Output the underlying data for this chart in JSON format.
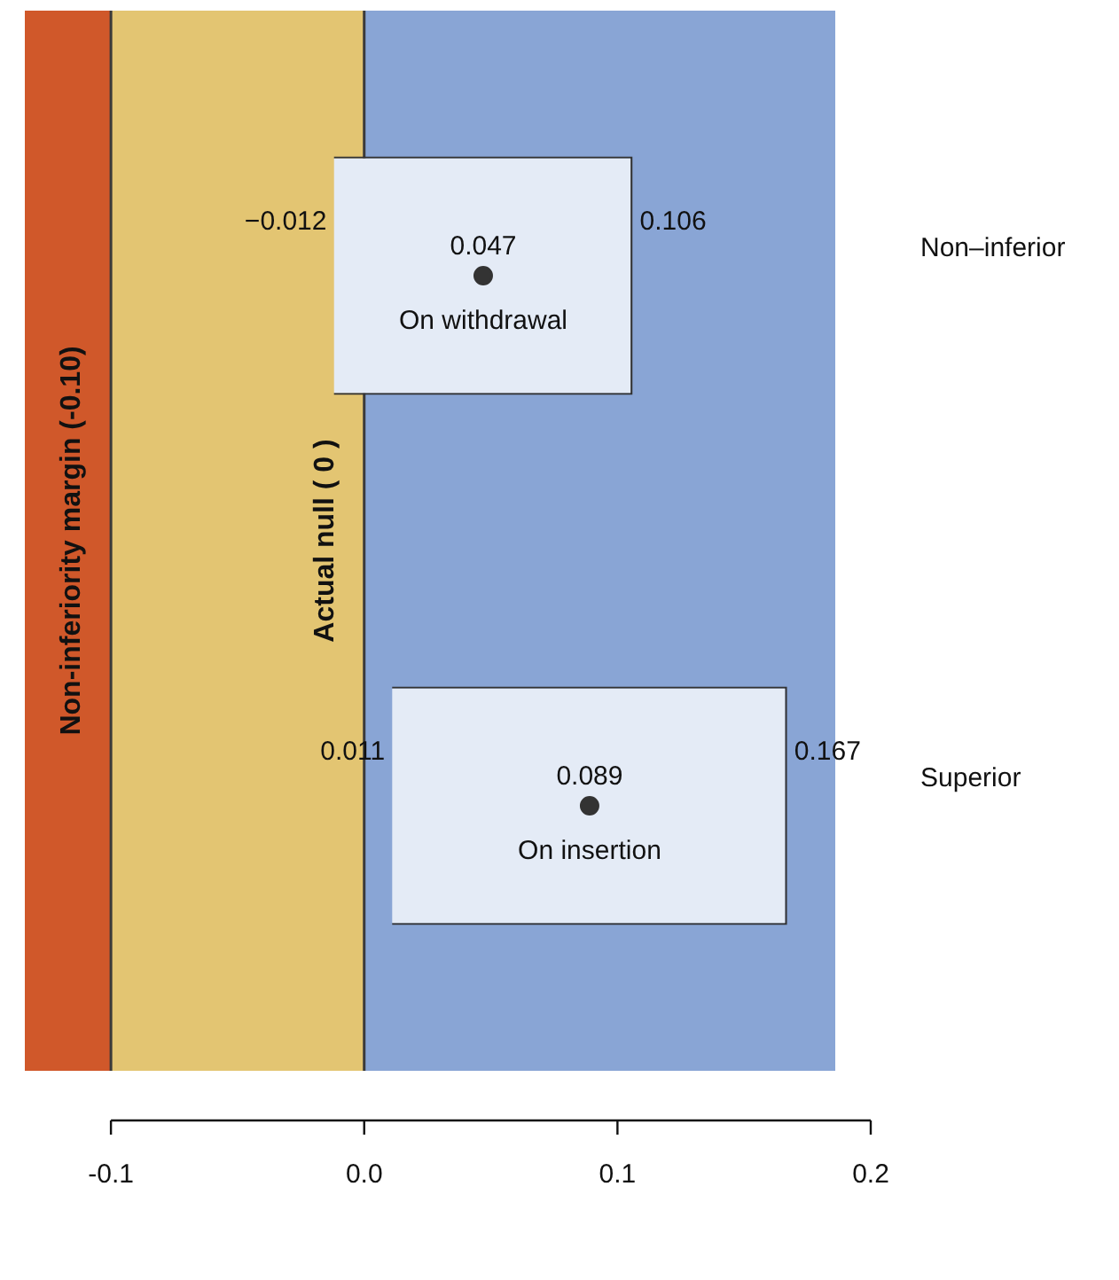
{
  "chart_data": {
    "type": "bar",
    "orientation": "horizontal",
    "categories": [
      "On withdrawal",
      "On insertion"
    ],
    "series": [
      {
        "color": "#e4ebf6",
        "base": [
          -0.012,
          0.011
        ],
        "values": [
          0.118,
          0.156
        ]
      },
      {
        "type": "scatter",
        "color": "#333333",
        "marker": "circle",
        "x": [
          "On withdrawal",
          "On insertion"
        ],
        "values": [
          0.047,
          0.089
        ],
        "value_labels": [
          "0.047",
          "0.089"
        ]
      }
    ],
    "xlim": [
      -0.134,
      0.2
    ],
    "xticks": [
      {
        "value": -0.1,
        "label": "-0.1"
      },
      {
        "value": 0,
        "label": "0.0"
      },
      {
        "value": 0.1,
        "label": "0.1"
      },
      {
        "value": 0.2,
        "label": "0.2"
      }
    ],
    "tick_labels": "x",
    "legend": false,
    "bands": [
      {
        "axis": "x",
        "from": -0.134,
        "to": -0.1,
        "color": "#d0582a"
      },
      {
        "axis": "x",
        "from": -0.1,
        "to": 0,
        "color": "#e3c572"
      },
      {
        "axis": "x",
        "from": 0,
        "to": 0.186,
        "color": "#89a5d5"
      }
    ],
    "ref_lines": [
      {
        "axis": "x",
        "value": -0.1,
        "label": "Non-inferiority margin (-0.10)"
      },
      {
        "axis": "x",
        "value": 0,
        "label": "Actual null ( 0 )"
      }
    ],
    "annotations": [
      {
        "text": "−0.012",
        "x": -0.012,
        "y": "On withdrawal"
      },
      {
        "text": "0.106",
        "x": 0.106,
        "y": "On withdrawal"
      },
      {
        "text": "0.011",
        "x": 0.011,
        "y": "On insertion"
      },
      {
        "text": "0.167",
        "x": 0.167,
        "y": "On insertion"
      },
      "Non–inferior",
      "Superior"
    ]
  }
}
